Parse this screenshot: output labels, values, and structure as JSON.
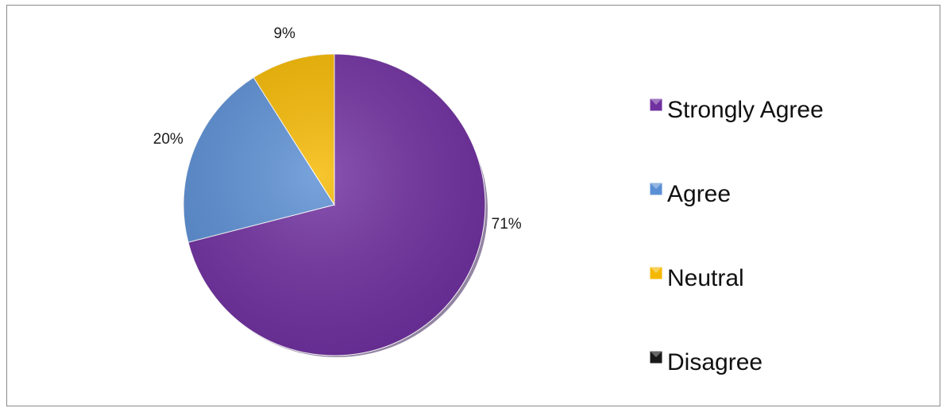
{
  "chart_data": {
    "type": "pie",
    "categories": [
      "Strongly Agree",
      "Agree",
      "Neutral",
      "Disagree"
    ],
    "values": [
      71,
      20,
      9,
      0
    ],
    "data_labels": [
      "71%",
      "20%",
      "9%",
      ""
    ],
    "legend_position": "right",
    "colors": [
      "#7030A0",
      "#5B8FD4",
      "#F5B800",
      "#1A1A1A"
    ],
    "title": ""
  }
}
